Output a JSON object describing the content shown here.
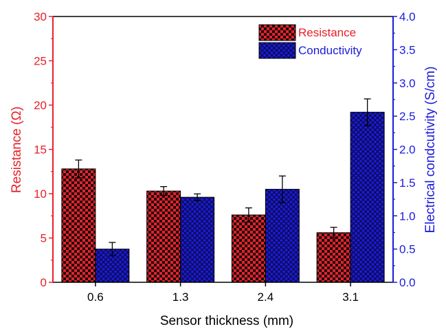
{
  "chart_data": {
    "type": "bar",
    "xlabel": "Sensor thickness (mm)",
    "categories": [
      "0.6",
      "1.3",
      "2.4",
      "3.1"
    ],
    "y_left": {
      "label": "Resistance (Ω)",
      "ylim": [
        0,
        30
      ],
      "ticks": [
        "0",
        "5",
        "10",
        "15",
        "20",
        "25",
        "30"
      ],
      "color": "#e8202a"
    },
    "y_right": {
      "label": "Electrical condcutivity (S/cm)",
      "ylim": [
        0,
        4
      ],
      "ticks": [
        "0.0",
        "0.5",
        "1.0",
        "1.5",
        "2.0",
        "2.5",
        "3.0",
        "3.5",
        "4.0"
      ],
      "color": "#1a1adc"
    },
    "series": [
      {
        "name": "Resistance",
        "axis": "left",
        "color": "#e8202a",
        "pattern": "checker",
        "values": [
          12.8,
          10.3,
          7.6,
          5.6
        ],
        "errors": [
          1.0,
          0.5,
          0.8,
          0.6
        ]
      },
      {
        "name": "Conductivity",
        "axis": "right",
        "color": "#1a1adc",
        "pattern": "crosshatch",
        "values": [
          0.5,
          1.28,
          1.4,
          2.56
        ],
        "errors": [
          0.1,
          0.05,
          0.2,
          0.2
        ]
      }
    ],
    "legend": "top-right",
    "grid": false
  }
}
